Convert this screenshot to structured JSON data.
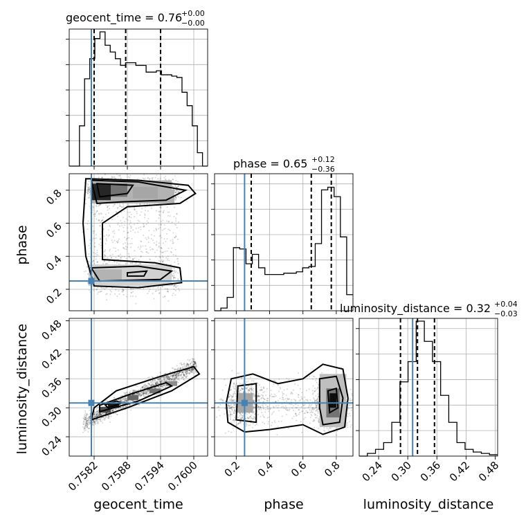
{
  "chart_data": {
    "type": "corner",
    "parameters": [
      "geocent_time",
      "phase",
      "luminosity_distance"
    ],
    "truths": {
      "geocent_time": 0.75815,
      "phase": 0.25,
      "luminosity_distance": 0.31
    },
    "titles": [
      {
        "param": "geocent_time",
        "text": "geocent_time = 0.76",
        "sup": "+0.00",
        "sub": "−0.00"
      },
      {
        "param": "phase",
        "text": "phase = 0.65",
        "sup": "+0.12",
        "sub": "−0.36"
      },
      {
        "param": "luminosity_distance",
        "text": "luminosity_distance = 0.32",
        "sup": "+0.04",
        "sub": "−0.03"
      }
    ],
    "axis_labels": {
      "geocent_time": "geocent_time",
      "phase": "phase",
      "luminosity_distance": "luminosity_distance"
    },
    "ranges": {
      "geocent_time": [
        0.75775,
        0.76025
      ],
      "phase": [
        0.07,
        0.9
      ],
      "luminosity_distance": [
        0.2,
        0.485
      ]
    },
    "ticks": {
      "geocent_time": [
        0.7582,
        0.7588,
        0.7594,
        0.76
      ],
      "phase": [
        0.2,
        0.4,
        0.6,
        0.8
      ],
      "luminosity_distance": [
        0.24,
        0.3,
        0.36,
        0.42,
        0.48
      ]
    },
    "tick_labels": {
      "geocent_time": [
        "0.7582",
        "0.7588",
        "0.7594",
        "0.7600"
      ],
      "phase": [
        "0.2",
        "0.4",
        "0.6",
        "0.8"
      ],
      "luminosity_distance": [
        "0.24",
        "0.30",
        "0.36",
        "0.42",
        "0.48"
      ]
    },
    "quantiles": {
      "geocent_time": [
        0.7582,
        0.75877,
        0.7594
      ],
      "phase": [
        0.29,
        0.65,
        0.77
      ],
      "luminosity_distance": [
        0.285,
        0.32,
        0.355
      ]
    },
    "histograms": {
      "geocent_time": {
        "edges_range": [
          0.75775,
          0.76025
        ],
        "counts": [
          0,
          0,
          0.3,
          0.65,
          0.8,
          0.95,
          1.0,
          0.9,
          0.85,
          0.8,
          0.75,
          0.77,
          0.77,
          0.75,
          0.75,
          0.7,
          0.7,
          0.71,
          0.68,
          0.68,
          0.67,
          0.66,
          0.55,
          0.45,
          0.3,
          0.1,
          0.0
        ]
      },
      "phase": {
        "edges_range": [
          0.07,
          0.9
        ],
        "counts": [
          0.0,
          0.02,
          0.1,
          0.47,
          0.46,
          0.35,
          0.42,
          0.32,
          0.27,
          0.27,
          0.27,
          0.28,
          0.28,
          0.29,
          0.32,
          0.33,
          0.5,
          0.9,
          0.92,
          0.85,
          0.55,
          0.12
        ]
      },
      "luminosity_distance": {
        "edges_range": [
          0.2,
          0.485
        ],
        "counts": [
          0.0,
          0.02,
          0.05,
          0.1,
          0.25,
          0.55,
          0.7,
          1.0,
          0.85,
          0.7,
          0.45,
          0.25,
          0.1,
          0.05,
          0.03,
          0.02,
          0.01
        ]
      }
    },
    "truth_color": "#4682b4",
    "grid": true
  }
}
